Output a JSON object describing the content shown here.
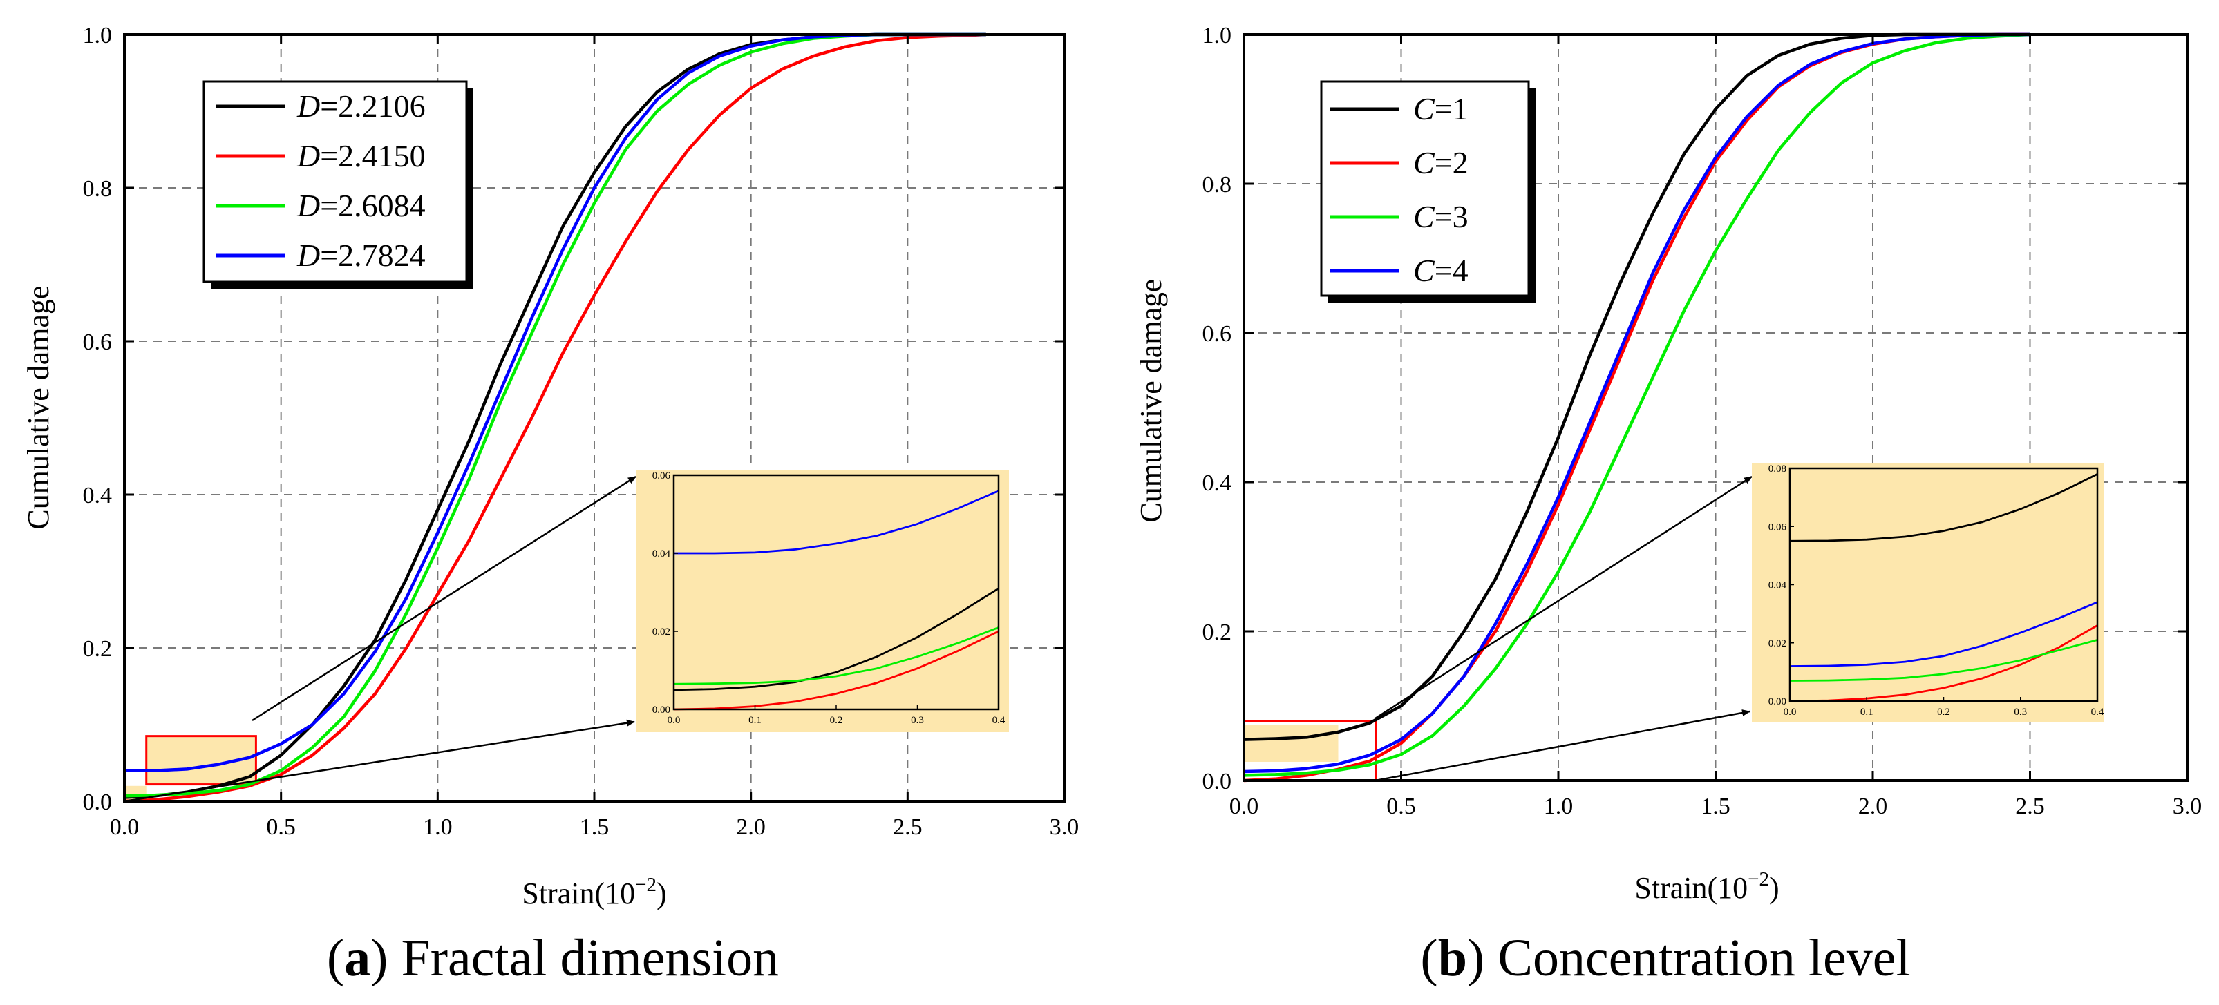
{
  "panels": [
    {
      "caption_letter": "a",
      "caption_text": "Fractal dimension",
      "ylabel": "Cumulative damage",
      "xlabel_main": "Strain(10",
      "xlabel_exp": "−2",
      "xlabel_close": ")",
      "legend": [
        {
          "var": "D",
          "value": "=2.2106"
        },
        {
          "var": "D",
          "value": "=2.4150"
        },
        {
          "var": "D",
          "value": "=2.6084"
        },
        {
          "var": "D",
          "value": "=2.7824"
        }
      ]
    },
    {
      "caption_letter": "b",
      "caption_text": "Concentration level",
      "ylabel": "Cumulative damage",
      "xlabel_main": "Strain(10",
      "xlabel_exp": "−2",
      "xlabel_close": ")",
      "legend": [
        {
          "var": "C",
          "value": "=1"
        },
        {
          "var": "C",
          "value": "=2"
        },
        {
          "var": "C",
          "value": "=3"
        },
        {
          "var": "C",
          "value": "=4"
        }
      ]
    }
  ],
  "chart_data": [
    {
      "type": "line",
      "title": "",
      "xlabel": "Strain(10−2)",
      "ylabel": "Cumulative damage",
      "xlim": [
        0,
        3.0
      ],
      "ylim": [
        0,
        1.0
      ],
      "xticks": [
        "0.0",
        "0.5",
        "1.0",
        "1.5",
        "2.0",
        "2.5",
        "3.0"
      ],
      "yticks": [
        "0.0",
        "0.2",
        "0.4",
        "0.6",
        "0.8",
        "1.0"
      ],
      "grid": true,
      "legend_position": "top-left",
      "colors": [
        "#000000",
        "#ff0000",
        "#00ee00",
        "#0000ff"
      ],
      "series": [
        {
          "name": "D=2.2106",
          "x": [
            0,
            0.1,
            0.2,
            0.3,
            0.4,
            0.5,
            0.6,
            0.7,
            0.8,
            0.9,
            1.0,
            1.1,
            1.2,
            1.3,
            1.4,
            1.5,
            1.6,
            1.7,
            1.8,
            1.9,
            2.0,
            2.1,
            2.2,
            2.3,
            2.4,
            2.5,
            2.6,
            2.7,
            2.75
          ],
          "y": [
            0.005,
            0.007,
            0.012,
            0.02,
            0.032,
            0.06,
            0.1,
            0.15,
            0.21,
            0.29,
            0.38,
            0.47,
            0.57,
            0.66,
            0.75,
            0.82,
            0.88,
            0.925,
            0.955,
            0.975,
            0.987,
            0.993,
            0.997,
            0.999,
            1.0,
            1.0,
            1.0,
            1.0,
            1.0
          ]
        },
        {
          "name": "D=2.4150",
          "x": [
            0,
            0.1,
            0.2,
            0.3,
            0.4,
            0.5,
            0.6,
            0.7,
            0.8,
            0.9,
            1.0,
            1.1,
            1.2,
            1.3,
            1.4,
            1.5,
            1.6,
            1.7,
            1.8,
            1.9,
            2.0,
            2.1,
            2.2,
            2.3,
            2.4,
            2.5,
            2.6,
            2.7,
            2.75
          ],
          "y": [
            0.0,
            0.002,
            0.006,
            0.012,
            0.02,
            0.035,
            0.06,
            0.095,
            0.14,
            0.2,
            0.27,
            0.34,
            0.42,
            0.5,
            0.585,
            0.66,
            0.73,
            0.795,
            0.85,
            0.895,
            0.93,
            0.955,
            0.972,
            0.984,
            0.992,
            0.996,
            0.998,
            0.999,
            1.0
          ]
        },
        {
          "name": "D=2.6084",
          "x": [
            0,
            0.1,
            0.2,
            0.3,
            0.4,
            0.5,
            0.6,
            0.7,
            0.8,
            0.9,
            1.0,
            1.1,
            1.2,
            1.3,
            1.4,
            1.5,
            1.6,
            1.7,
            1.8,
            1.9,
            2.0,
            2.1,
            2.2,
            2.3,
            2.4,
            2.5,
            2.6,
            2.7,
            2.75
          ],
          "y": [
            0.007,
            0.008,
            0.01,
            0.014,
            0.022,
            0.04,
            0.07,
            0.11,
            0.17,
            0.245,
            0.33,
            0.42,
            0.52,
            0.61,
            0.7,
            0.78,
            0.85,
            0.9,
            0.935,
            0.96,
            0.977,
            0.988,
            0.995,
            0.998,
            1.0,
            1.0,
            1.0,
            1.0,
            1.0
          ]
        },
        {
          "name": "D=2.7824",
          "x": [
            0,
            0.1,
            0.2,
            0.3,
            0.4,
            0.5,
            0.6,
            0.7,
            0.8,
            0.9,
            1.0,
            1.1,
            1.2,
            1.3,
            1.4,
            1.5,
            1.6,
            1.7,
            1.8,
            1.9,
            2.0,
            2.1,
            2.2,
            2.3,
            2.4,
            2.5,
            2.6,
            2.7,
            2.75
          ],
          "y": [
            0.04,
            0.04,
            0.042,
            0.048,
            0.057,
            0.075,
            0.1,
            0.14,
            0.195,
            0.265,
            0.35,
            0.44,
            0.535,
            0.63,
            0.72,
            0.8,
            0.865,
            0.915,
            0.95,
            0.972,
            0.985,
            0.993,
            0.997,
            0.999,
            1.0,
            1.0,
            1.0,
            1.0,
            1.0
          ]
        }
      ],
      "inset": {
        "xlim": [
          0,
          0.4
        ],
        "ylim": [
          0,
          0.06
        ],
        "xticks": [
          "0.0",
          "0.1",
          "0.2",
          "0.3",
          "0.4"
        ],
        "yticks": [
          "0.00",
          "0.02",
          "0.04",
          "0.06"
        ],
        "background": "#fde7ad",
        "series": [
          {
            "x": [
              0,
              0.05,
              0.1,
              0.15,
              0.2,
              0.25,
              0.3,
              0.35,
              0.4
            ],
            "y": [
              0.005,
              0.0052,
              0.0058,
              0.007,
              0.0095,
              0.0135,
              0.0185,
              0.0245,
              0.031
            ]
          },
          {
            "x": [
              0,
              0.05,
              0.1,
              0.15,
              0.2,
              0.25,
              0.3,
              0.35,
              0.4
            ],
            "y": [
              0.0,
              0.0002,
              0.0008,
              0.002,
              0.004,
              0.0068,
              0.0105,
              0.015,
              0.02
            ]
          },
          {
            "x": [
              0,
              0.05,
              0.1,
              0.15,
              0.2,
              0.25,
              0.3,
              0.35,
              0.4
            ],
            "y": [
              0.0065,
              0.0066,
              0.0068,
              0.0073,
              0.0085,
              0.0105,
              0.0135,
              0.017,
              0.021
            ]
          },
          {
            "x": [
              0,
              0.05,
              0.1,
              0.15,
              0.2,
              0.25,
              0.3,
              0.35,
              0.4
            ],
            "y": [
              0.04,
              0.04,
              0.0402,
              0.041,
              0.0425,
              0.0445,
              0.0475,
              0.0515,
              0.056
            ]
          }
        ]
      }
    },
    {
      "type": "line",
      "title": "",
      "xlabel": "Strain(10−2)",
      "ylabel": "Cumulative damage",
      "xlim": [
        0,
        3.0
      ],
      "ylim": [
        0,
        1.0
      ],
      "xticks": [
        "0.0",
        "0.5",
        "1.0",
        "1.5",
        "2.0",
        "2.5",
        "3.0"
      ],
      "yticks": [
        "0.0",
        "0.2",
        "0.4",
        "0.6",
        "0.8",
        "1.0"
      ],
      "grid": true,
      "legend_position": "top-left",
      "colors": [
        "#000000",
        "#ff0000",
        "#00ee00",
        "#0000ff"
      ],
      "series": [
        {
          "name": "C=1",
          "x": [
            0,
            0.1,
            0.2,
            0.3,
            0.4,
            0.5,
            0.6,
            0.7,
            0.8,
            0.9,
            1.0,
            1.1,
            1.2,
            1.3,
            1.4,
            1.5,
            1.6,
            1.7,
            1.8,
            1.9,
            2.0,
            2.1,
            2.2,
            2.3,
            2.4,
            2.5
          ],
          "y": [
            0.055,
            0.056,
            0.058,
            0.065,
            0.077,
            0.1,
            0.14,
            0.2,
            0.27,
            0.36,
            0.46,
            0.57,
            0.67,
            0.76,
            0.84,
            0.9,
            0.945,
            0.972,
            0.987,
            0.995,
            0.999,
            1.0,
            1.0,
            1.0,
            1.0,
            1.0
          ]
        },
        {
          "name": "C=2",
          "x": [
            0,
            0.1,
            0.2,
            0.3,
            0.4,
            0.5,
            0.6,
            0.7,
            0.8,
            0.9,
            1.0,
            1.1,
            1.2,
            1.3,
            1.4,
            1.5,
            1.6,
            1.7,
            1.8,
            1.9,
            2.0,
            2.1,
            2.2,
            2.3,
            2.4,
            2.5
          ],
          "y": [
            0.0,
            0.002,
            0.007,
            0.015,
            0.026,
            0.05,
            0.09,
            0.14,
            0.2,
            0.28,
            0.37,
            0.47,
            0.57,
            0.67,
            0.755,
            0.83,
            0.885,
            0.93,
            0.958,
            0.976,
            0.987,
            0.994,
            0.997,
            0.999,
            1.0,
            1.0
          ]
        },
        {
          "name": "C=3",
          "x": [
            0,
            0.1,
            0.2,
            0.3,
            0.4,
            0.5,
            0.6,
            0.7,
            0.8,
            0.9,
            1.0,
            1.1,
            1.2,
            1.3,
            1.4,
            1.5,
            1.6,
            1.7,
            1.8,
            1.9,
            2.0,
            2.1,
            2.2,
            2.3,
            2.4,
            2.5
          ],
          "y": [
            0.007,
            0.008,
            0.01,
            0.014,
            0.021,
            0.035,
            0.06,
            0.1,
            0.15,
            0.21,
            0.28,
            0.36,
            0.45,
            0.54,
            0.63,
            0.71,
            0.78,
            0.845,
            0.895,
            0.935,
            0.962,
            0.978,
            0.989,
            0.995,
            0.998,
            1.0
          ]
        },
        {
          "name": "C=4",
          "x": [
            0,
            0.1,
            0.2,
            0.3,
            0.4,
            0.5,
            0.6,
            0.7,
            0.8,
            0.9,
            1.0,
            1.1,
            1.2,
            1.3,
            1.4,
            1.5,
            1.6,
            1.7,
            1.8,
            1.9,
            2.0,
            2.1,
            2.2,
            2.3,
            2.4,
            2.5
          ],
          "y": [
            0.012,
            0.013,
            0.016,
            0.022,
            0.034,
            0.055,
            0.09,
            0.14,
            0.21,
            0.29,
            0.38,
            0.48,
            0.58,
            0.68,
            0.765,
            0.835,
            0.89,
            0.932,
            0.96,
            0.977,
            0.988,
            0.994,
            0.997,
            0.999,
            1.0,
            1.0
          ]
        }
      ],
      "inset": {
        "xlim": [
          0,
          0.4
        ],
        "ylim": [
          0,
          0.08
        ],
        "xticks": [
          "0.0",
          "0.1",
          "0.2",
          "0.3",
          "0.4"
        ],
        "yticks": [
          "0.00",
          "0.02",
          "0.04",
          "0.06",
          "0.08"
        ],
        "background": "#fde7ad",
        "series": [
          {
            "x": [
              0,
              0.05,
              0.1,
              0.15,
              0.2,
              0.25,
              0.3,
              0.35,
              0.4
            ],
            "y": [
              0.055,
              0.0551,
              0.0555,
              0.0565,
              0.0585,
              0.0615,
              0.066,
              0.0715,
              0.078
            ]
          },
          {
            "x": [
              0,
              0.05,
              0.1,
              0.15,
              0.2,
              0.25,
              0.3,
              0.35,
              0.4
            ],
            "y": [
              0.0,
              0.0002,
              0.0009,
              0.0022,
              0.0045,
              0.0078,
              0.0125,
              0.0185,
              0.026
            ]
          },
          {
            "x": [
              0,
              0.05,
              0.1,
              0.15,
              0.2,
              0.25,
              0.3,
              0.35,
              0.4
            ],
            "y": [
              0.007,
              0.0071,
              0.0074,
              0.008,
              0.0093,
              0.0113,
              0.014,
              0.0175,
              0.021
            ]
          },
          {
            "x": [
              0,
              0.05,
              0.1,
              0.15,
              0.2,
              0.25,
              0.3,
              0.35,
              0.4
            ],
            "y": [
              0.012,
              0.0121,
              0.0125,
              0.0135,
              0.0155,
              0.019,
              0.0235,
              0.0285,
              0.034
            ]
          }
        ]
      }
    }
  ]
}
